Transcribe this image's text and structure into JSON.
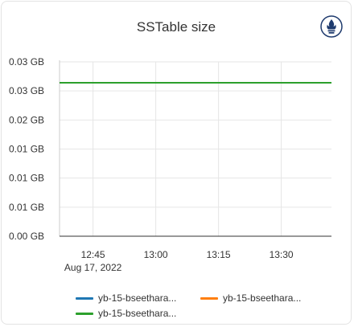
{
  "panel": {
    "title": "SSTable size",
    "icon": "prometheus-icon"
  },
  "chart_data": {
    "type": "line",
    "title": "SSTable size",
    "y_tick_labels": [
      "0.00 GB",
      "0.01 GB",
      "0.01 GB",
      "0.01 GB",
      "0.02 GB",
      "0.03 GB",
      "0.03 GB"
    ],
    "y_tick_values": [
      0,
      0.005,
      0.01,
      0.015,
      0.02,
      0.025,
      0.03
    ],
    "ylim": [
      0,
      0.03
    ],
    "x_tick_labels": [
      "12:45",
      "13:00",
      "13:15",
      "13:30"
    ],
    "x_tick_values": [
      "12:45",
      "13:00",
      "13:15",
      "13:30"
    ],
    "x_date_label": "Aug 17, 2022",
    "xlim": [
      "12:37",
      "13:42"
    ],
    "grid": true,
    "legend_position": "bottom",
    "series": [
      {
        "name": "yb-15-bseethara...",
        "color": "#1f77b4",
        "x": [
          "12:37",
          "13:42"
        ],
        "y": [
          0.0264,
          0.0264
        ]
      },
      {
        "name": "yb-15-bseethara...",
        "color": "#ff7f0e",
        "x": [
          "12:37",
          "13:42"
        ],
        "y": [
          0.0264,
          0.0264
        ]
      },
      {
        "name": "yb-15-bseethara...",
        "color": "#2ca02c",
        "x": [
          "12:37",
          "13:42"
        ],
        "y": [
          0.0264,
          0.0264
        ]
      }
    ]
  }
}
